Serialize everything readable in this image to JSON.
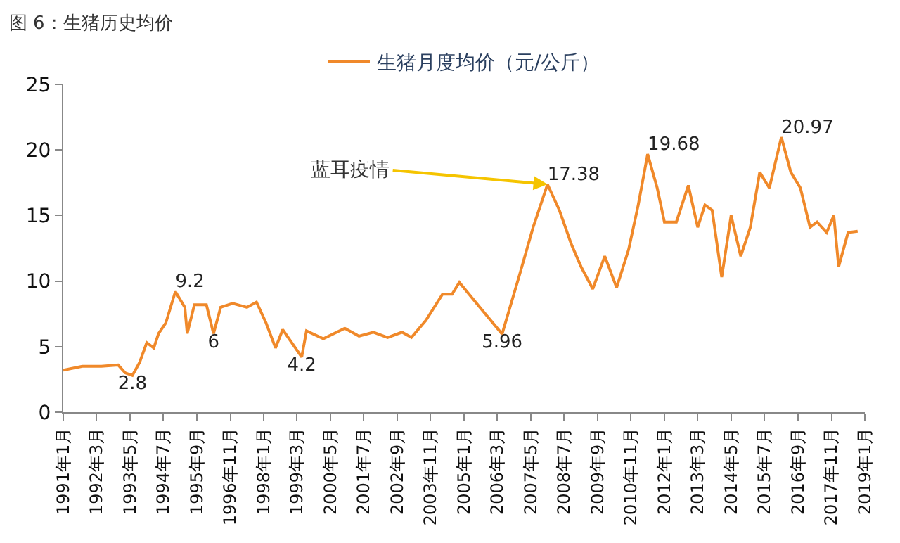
{
  "chart_data": {
    "type": "line",
    "title": "图 6：生猪历史均价",
    "legend": "top",
    "x": [
      "1991-01",
      "1991-09",
      "1992-05",
      "1992-12",
      "1993-03",
      "1993-06",
      "1993-09",
      "1993-12",
      "1994-03",
      "1994-05",
      "1994-08",
      "1994-12",
      "1995-04",
      "1995-05",
      "1995-08",
      "1996-01",
      "1996-04",
      "1996-07",
      "1996-12",
      "1997-06",
      "1997-10",
      "1998-02",
      "1998-06",
      "1998-09",
      "1998-12",
      "1999-05",
      "1999-07",
      "2000-02",
      "2000-11",
      "2001-05",
      "2001-11",
      "2002-05",
      "2002-11",
      "2003-03",
      "2003-09",
      "2004-04",
      "2004-08",
      "2004-11",
      "2005-09",
      "2006-05",
      "2006-12",
      "2007-06",
      "2007-12",
      "2008-05",
      "2008-10",
      "2009-02",
      "2009-07",
      "2009-12",
      "2010-05",
      "2010-10",
      "2011-02",
      "2011-06",
      "2011-10",
      "2012-01",
      "2012-06",
      "2012-11",
      "2013-03",
      "2013-06",
      "2013-09",
      "2014-01",
      "2014-05",
      "2014-09",
      "2015-01",
      "2015-05",
      "2015-09",
      "2016-02",
      "2016-06",
      "2016-10",
      "2017-02",
      "2017-05",
      "2017-09",
      "2017-12",
      "2018-02",
      "2018-06",
      "2018-10"
    ],
    "series": [
      {
        "name": "生猪月度均价（元/公斤）",
        "color": "#f0892a",
        "values": [
          3.2,
          3.5,
          3.5,
          3.6,
          3.0,
          2.8,
          3.8,
          5.3,
          4.9,
          6.0,
          6.8,
          9.2,
          8.0,
          6.0,
          8.2,
          8.2,
          6,
          8.0,
          8.3,
          8.0,
          8.4,
          6.8,
          4.9,
          6.3,
          5.5,
          4.2,
          6.2,
          5.6,
          6.4,
          5.8,
          6.1,
          5.7,
          6.1,
          5.7,
          7.0,
          9.0,
          9.0,
          9.9,
          7.7,
          5.96,
          10.3,
          14.1,
          17.38,
          15.4,
          12.8,
          11.1,
          9.4,
          11.9,
          9.5,
          12.4,
          15.8,
          19.68,
          17.1,
          14.5,
          14.5,
          17.3,
          14.1,
          15.8,
          15.4,
          10.3,
          15.0,
          11.9,
          14.1,
          18.3,
          17.1,
          20.97,
          18.3,
          17.1,
          14.1,
          14.5,
          13.7,
          15.0,
          11.1,
          13.7,
          13.8
        ],
        "value_labels": [
          null,
          null,
          null,
          null,
          null,
          "2.8",
          null,
          null,
          null,
          null,
          null,
          "9.2",
          null,
          null,
          null,
          null,
          "6",
          null,
          null,
          null,
          null,
          null,
          null,
          null,
          null,
          "4.2",
          null,
          null,
          null,
          null,
          null,
          null,
          null,
          null,
          null,
          null,
          null,
          null,
          null,
          "5.96",
          null,
          null,
          "17.38",
          null,
          null,
          null,
          null,
          null,
          null,
          null,
          null,
          "19.68",
          null,
          null,
          null,
          null,
          null,
          null,
          null,
          null,
          null,
          null,
          null,
          null,
          null,
          "20.97",
          null,
          null,
          null,
          null,
          null,
          null,
          null,
          null,
          null
        ]
      }
    ],
    "xlim": [
      "1991-01",
      "2019-01"
    ],
    "xticks": [
      {
        "value": "1991-01",
        "label": "1991年1月"
      },
      {
        "value": "1992-03",
        "label": "1992年3月"
      },
      {
        "value": "1993-05",
        "label": "1993年5月"
      },
      {
        "value": "1994-07",
        "label": "1994年7月"
      },
      {
        "value": "1995-09",
        "label": "1995年9月"
      },
      {
        "value": "1996-11",
        "label": "1996年11月"
      },
      {
        "value": "1998-01",
        "label": "1998年1月"
      },
      {
        "value": "1999-03",
        "label": "1999年3月"
      },
      {
        "value": "2000-05",
        "label": "2000年5月"
      },
      {
        "value": "2001-07",
        "label": "2001年7月"
      },
      {
        "value": "2002-09",
        "label": "2002年9月"
      },
      {
        "value": "2003-11",
        "label": "2003年11月"
      },
      {
        "value": "2005-01",
        "label": "2005年1月"
      },
      {
        "value": "2006-03",
        "label": "2006年3月"
      },
      {
        "value": "2007-05",
        "label": "2007年5月"
      },
      {
        "value": "2008-07",
        "label": "2008年7月"
      },
      {
        "value": "2009-09",
        "label": "2009年9月"
      },
      {
        "value": "2010-11",
        "label": "2010年11月"
      },
      {
        "value": "2012-01",
        "label": "2012年1月"
      },
      {
        "value": "2013-03",
        "label": "2013年3月"
      },
      {
        "value": "2014-05",
        "label": "2014年5月"
      },
      {
        "value": "2015-07",
        "label": "2015年7月"
      },
      {
        "value": "2016-09",
        "label": "2016年9月"
      },
      {
        "value": "2017-11",
        "label": "2017年11月"
      },
      {
        "value": "2019-01",
        "label": "2019年1月"
      }
    ],
    "ylim": [
      0,
      25
    ],
    "yticks": [
      0,
      5,
      10,
      15,
      20,
      25
    ],
    "marker": "none",
    "line_style": "solid",
    "annotations": [
      {
        "text": "蓝耳疫情",
        "x": "2007-12",
        "y": 17.38
      }
    ]
  }
}
